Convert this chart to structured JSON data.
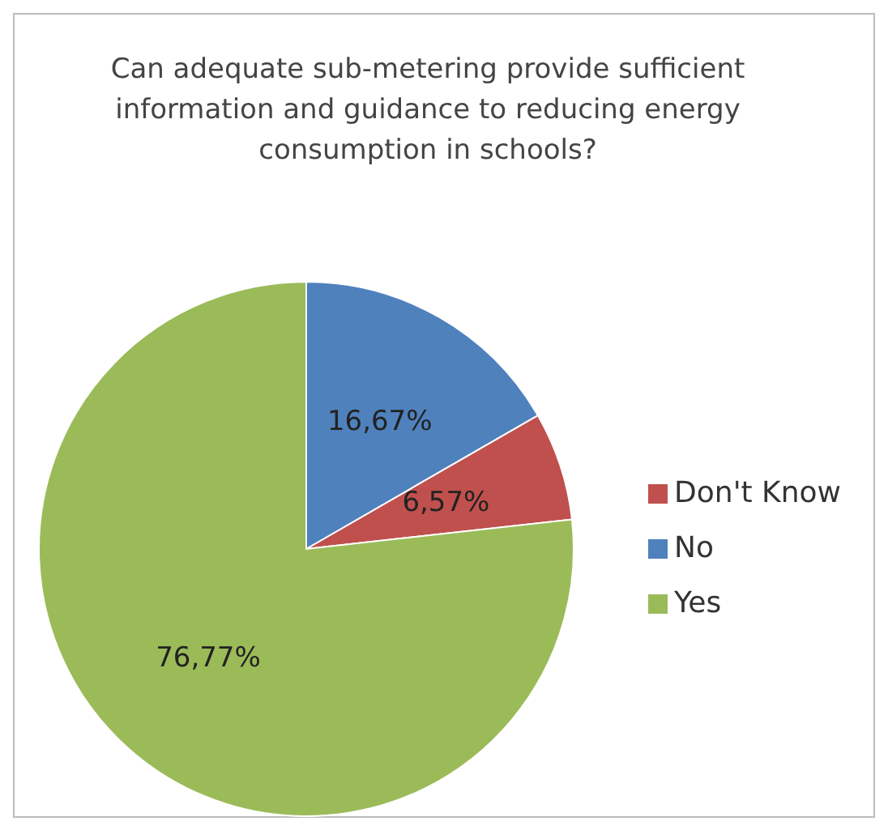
{
  "chart_data": {
    "type": "pie",
    "title": "Can adequate sub-metering provide sufficient information and guidance to reducing energy consumption in schools?",
    "categories": [
      "No",
      "Don't Know",
      "Yes"
    ],
    "values": [
      16.67,
      6.57,
      76.77
    ],
    "value_labels": [
      "16,67%",
      "6,57%",
      "76,77%"
    ],
    "colors": [
      "#4f81bd",
      "#c0504d",
      "#9bbb59"
    ],
    "legend": "right"
  }
}
